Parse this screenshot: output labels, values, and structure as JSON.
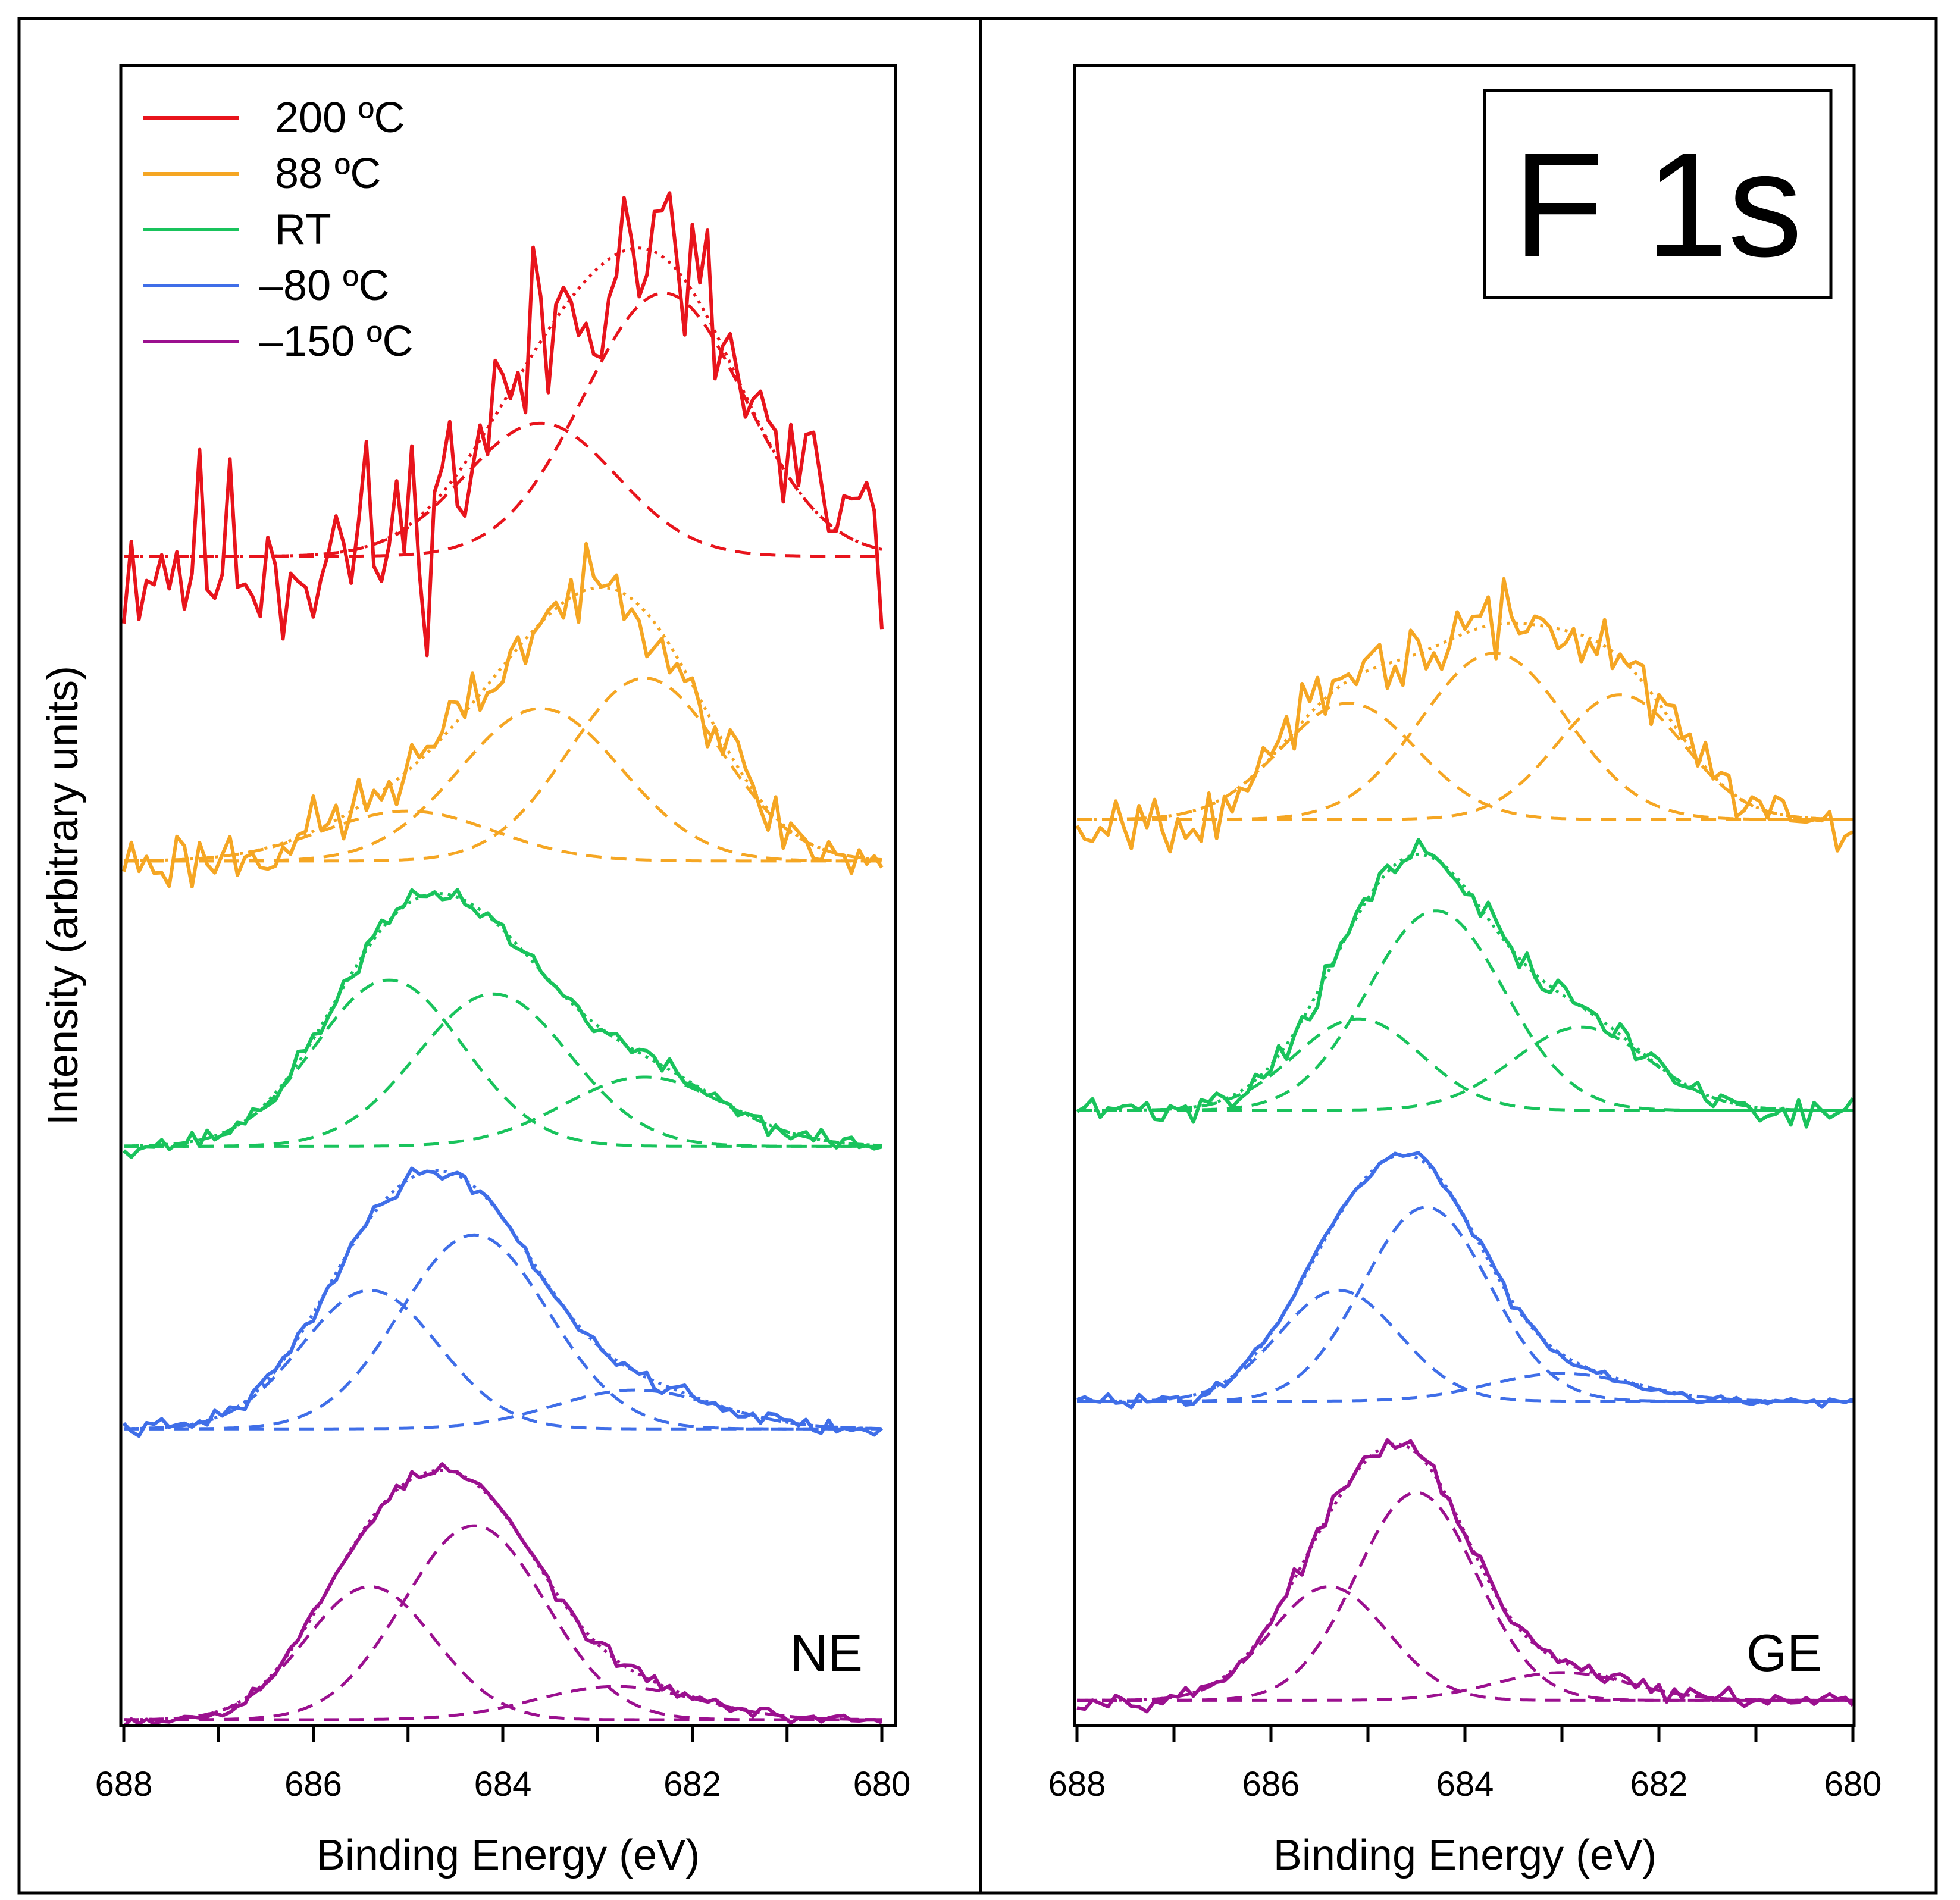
{
  "figure_title": "F 1s",
  "chart_data": [
    {
      "type": "line",
      "panel_label": "NE",
      "xlabel": "Binding Energy (eV)",
      "ylabel": "Intensity (arbitrary units)",
      "xlim": [
        688,
        680
      ],
      "x_reversed": true,
      "xticks": [
        688,
        686,
        684,
        682,
        680
      ],
      "ylim": [
        0,
        5.8
      ],
      "legend_position": "top-left",
      "series": [
        {
          "name": "200 ºC",
          "color": "#e8141c",
          "offset": 4.2,
          "noise": 0.32,
          "seed": 11,
          "components": [
            {
              "center": 682.3,
              "height": 0.95,
              "width": 0.85
            },
            {
              "center": 683.6,
              "height": 0.48,
              "width": 0.8
            }
          ]
        },
        {
          "name": "88 ºC",
          "color": "#f5a623",
          "offset": 3.1,
          "noise": 0.1,
          "seed": 23,
          "components": [
            {
              "center": 682.5,
              "height": 0.66,
              "width": 0.8
            },
            {
              "center": 683.6,
              "height": 0.55,
              "width": 0.85
            },
            {
              "center": 685.0,
              "height": 0.18,
              "width": 0.9
            }
          ]
        },
        {
          "name": "RT",
          "color": "#19c35c",
          "offset": 2.07,
          "noise": 0.03,
          "seed": 37,
          "components": [
            {
              "center": 685.2,
              "height": 0.6,
              "width": 0.78
            },
            {
              "center": 684.1,
              "height": 0.55,
              "width": 0.8
            },
            {
              "center": 682.5,
              "height": 0.25,
              "width": 0.85
            }
          ]
        },
        {
          "name": "–80 ºC",
          "color": "#3f6ee8",
          "offset": 1.05,
          "noise": 0.025,
          "seed": 41,
          "components": [
            {
              "center": 685.4,
              "height": 0.5,
              "width": 0.72
            },
            {
              "center": 684.3,
              "height": 0.7,
              "width": 0.78
            },
            {
              "center": 682.6,
              "height": 0.14,
              "width": 0.85
            }
          ]
        },
        {
          "name": "–150 ºC",
          "color": "#9b108f",
          "offset": 0.0,
          "noise": 0.02,
          "seed": 53,
          "components": [
            {
              "center": 685.4,
              "height": 0.48,
              "width": 0.68
            },
            {
              "center": 684.3,
              "height": 0.7,
              "width": 0.75
            },
            {
              "center": 682.8,
              "height": 0.12,
              "width": 0.85
            }
          ]
        }
      ]
    },
    {
      "type": "line",
      "panel_label": "GE",
      "xlabel": "Binding Energy (eV)",
      "ylabel": "",
      "xlim": [
        688,
        680
      ],
      "x_reversed": true,
      "xticks": [
        688,
        686,
        684,
        682,
        680
      ],
      "ylim": [
        0,
        5.8
      ],
      "series": [
        {
          "name": "88 ºC",
          "color": "#f5a623",
          "offset": 3.25,
          "noise": 0.1,
          "seed": 67,
          "components": [
            {
              "center": 685.2,
              "height": 0.42,
              "width": 0.7
            },
            {
              "center": 683.7,
              "height": 0.6,
              "width": 0.75
            },
            {
              "center": 682.4,
              "height": 0.45,
              "width": 0.65
            }
          ]
        },
        {
          "name": "RT",
          "color": "#19c35c",
          "offset": 2.2,
          "noise": 0.045,
          "seed": 71,
          "components": [
            {
              "center": 685.1,
              "height": 0.33,
              "width": 0.65
            },
            {
              "center": 684.3,
              "height": 0.72,
              "width": 0.7
            },
            {
              "center": 682.8,
              "height": 0.3,
              "width": 0.7
            }
          ]
        },
        {
          "name": "–80 ºC",
          "color": "#3f6ee8",
          "offset": 1.15,
          "noise": 0.02,
          "seed": 83,
          "components": [
            {
              "center": 685.3,
              "height": 0.4,
              "width": 0.62
            },
            {
              "center": 684.4,
              "height": 0.7,
              "width": 0.65
            },
            {
              "center": 683.0,
              "height": 0.1,
              "width": 0.75
            }
          ]
        },
        {
          "name": "–150 ºC",
          "color": "#9b108f",
          "offset": 0.07,
          "noise": 0.025,
          "seed": 97,
          "components": [
            {
              "center": 685.4,
              "height": 0.41,
              "width": 0.6
            },
            {
              "center": 684.5,
              "height": 0.75,
              "width": 0.62
            },
            {
              "center": 683.0,
              "height": 0.1,
              "width": 0.7
            }
          ]
        }
      ]
    }
  ]
}
